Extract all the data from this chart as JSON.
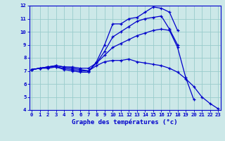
{
  "title": "Graphe des températures (°c)",
  "background_color": "#cce8e8",
  "line_color": "#0000cc",
  "hours": [
    0,
    1,
    2,
    3,
    4,
    5,
    6,
    7,
    8,
    9,
    10,
    11,
    12,
    13,
    14,
    15,
    16,
    17,
    18,
    19,
    20,
    21,
    22,
    23
  ],
  "curve1": [
    7.1,
    7.2,
    7.2,
    7.3,
    7.1,
    7.0,
    6.9,
    6.9,
    7.7,
    9.0,
    10.6,
    10.6,
    11.0,
    11.1,
    11.5,
    11.9,
    11.8,
    11.5,
    10.1,
    null,
    null,
    null,
    null,
    null
  ],
  "curve2": [
    7.1,
    7.2,
    7.3,
    7.3,
    7.2,
    7.1,
    7.0,
    7.0,
    7.6,
    8.5,
    9.6,
    10.0,
    10.4,
    10.8,
    11.0,
    11.1,
    11.2,
    10.2,
    9.0,
    null,
    null,
    null,
    null,
    null
  ],
  "curve3": [
    7.1,
    7.2,
    7.3,
    7.4,
    7.3,
    7.3,
    7.2,
    7.2,
    7.6,
    8.2,
    8.8,
    9.1,
    9.4,
    9.7,
    9.9,
    10.1,
    10.2,
    10.1,
    8.8,
    6.5,
    4.8,
    null,
    null,
    null
  ],
  "curve4": [
    7.1,
    7.2,
    7.3,
    7.4,
    7.3,
    7.2,
    7.1,
    7.0,
    7.4,
    7.7,
    7.8,
    7.8,
    7.9,
    7.7,
    7.6,
    7.5,
    7.4,
    7.2,
    6.9,
    6.4,
    5.8,
    5.0,
    4.5,
    4.1
  ],
  "ylim": [
    4,
    12
  ],
  "xlim": [
    0,
    23
  ],
  "yticks": [
    4,
    5,
    6,
    7,
    8,
    9,
    10,
    11,
    12
  ],
  "grid_color": "#99cccc",
  "xlabel_fontsize": 6.5,
  "ylabel_fontsize": 6,
  "tick_fontsize": 5.2
}
